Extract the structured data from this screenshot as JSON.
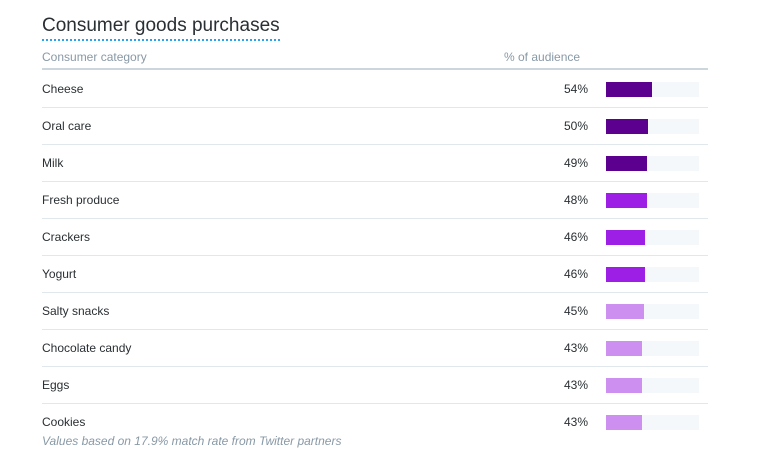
{
  "title": "Consumer goods purchases",
  "headers": {
    "category": "Consumer category",
    "pct": "% of audience"
  },
  "rows": [
    {
      "label": "Cheese",
      "value_text": "54%",
      "fraction": 0.54,
      "color": "#5c0090"
    },
    {
      "label": "Oral care",
      "value_text": "50%",
      "fraction": 0.5,
      "color": "#5c0090"
    },
    {
      "label": "Milk",
      "value_text": "49%",
      "fraction": 0.49,
      "color": "#5c0090"
    },
    {
      "label": "Fresh produce",
      "value_text": "48%",
      "fraction": 0.48,
      "color": "#9d1fe6"
    },
    {
      "label": "Crackers",
      "value_text": "46%",
      "fraction": 0.46,
      "color": "#9d1fe6"
    },
    {
      "label": "Yogurt",
      "value_text": "46%",
      "fraction": 0.46,
      "color": "#9d1fe6"
    },
    {
      "label": "Salty snacks",
      "value_text": "45%",
      "fraction": 0.45,
      "color": "#cd8ff0"
    },
    {
      "label": "Chocolate candy",
      "value_text": "43%",
      "fraction": 0.43,
      "color": "#cd8ff0"
    },
    {
      "label": "Eggs",
      "value_text": "43%",
      "fraction": 0.43,
      "color": "#cd8ff0"
    },
    {
      "label": "Cookies",
      "value_text": "43%",
      "fraction": 0.43,
      "color": "#cd8ff0"
    }
  ],
  "footnote": "Values based on 17.9% match rate from Twitter partners"
}
